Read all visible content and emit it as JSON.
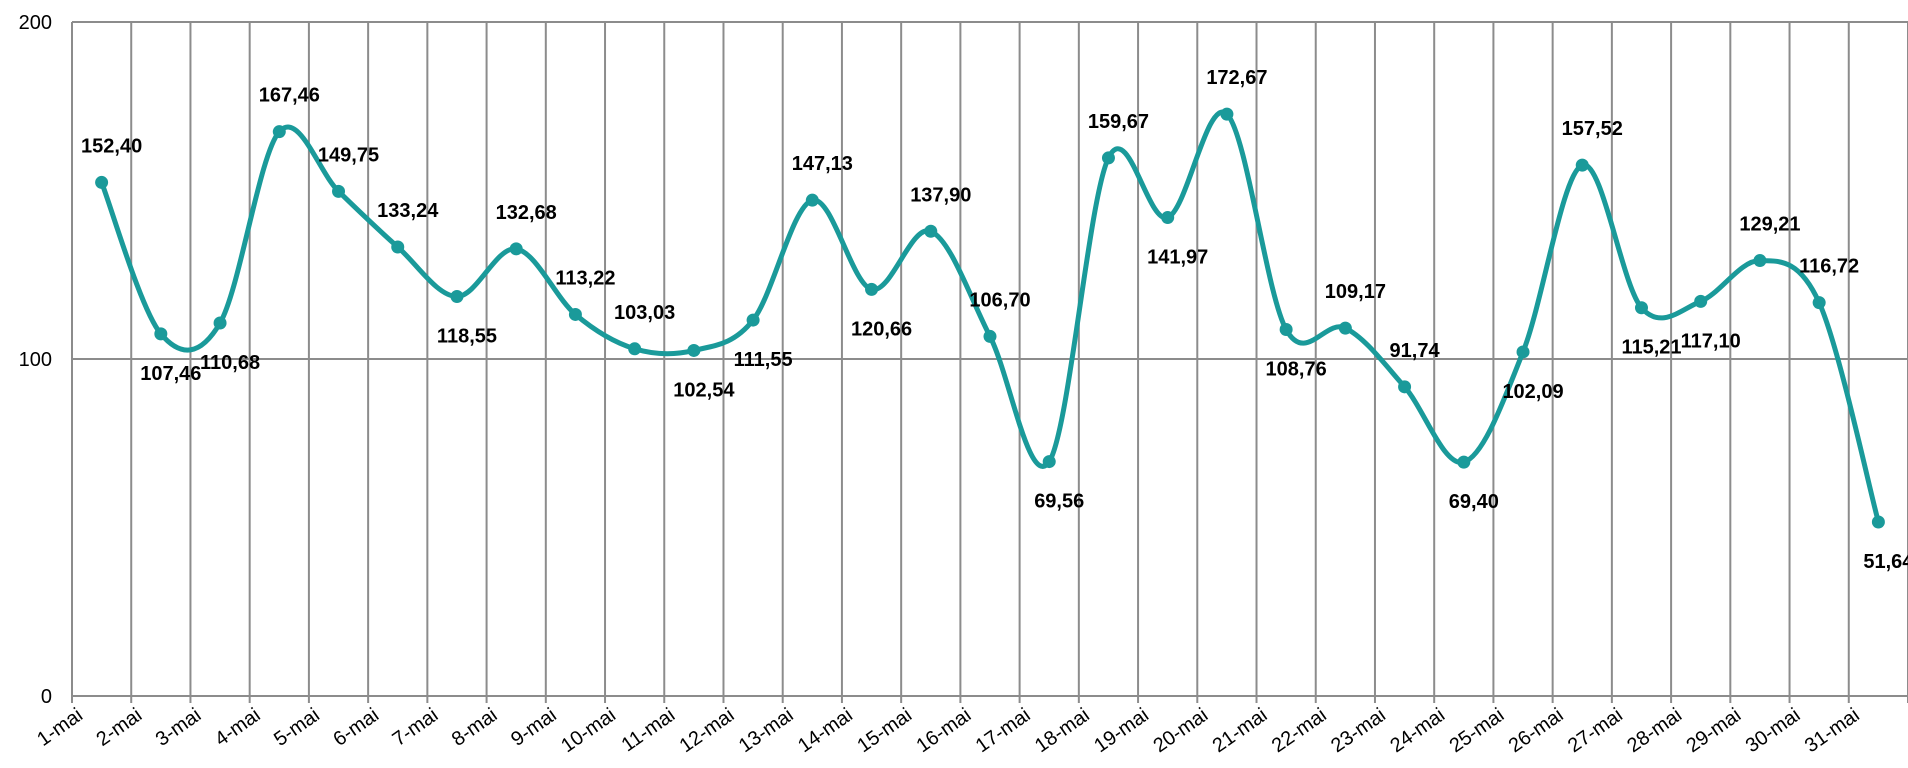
{
  "chart_data": {
    "type": "line",
    "title": "",
    "xlabel": "",
    "ylabel": "",
    "ylim": [
      0,
      200
    ],
    "y_ticks": [
      "0",
      "100",
      "200"
    ],
    "grid": true,
    "legend": "none",
    "categories": [
      "1-mai",
      "2-mai",
      "3-mai",
      "4-mai",
      "5-mai",
      "6-mai",
      "7-mai",
      "8-mai",
      "9-mai",
      "10-mai",
      "11-mai",
      "12-mai",
      "13-mai",
      "14-mai",
      "15-mai",
      "16-mai",
      "17-mai",
      "18-mai",
      "19-mai",
      "20-mai",
      "21-mai",
      "22-mai",
      "23-mai",
      "24-mai",
      "25-mai",
      "26-mai",
      "27-mai",
      "28-mai",
      "29-mai",
      "30-mai",
      "31-mai"
    ],
    "series": [
      {
        "color": "#1a9a9a",
        "values": [
          152.4,
          107.46,
          110.68,
          167.46,
          149.75,
          133.24,
          118.55,
          132.68,
          113.22,
          103.03,
          102.54,
          111.55,
          147.13,
          120.66,
          137.9,
          106.7,
          69.56,
          159.67,
          141.97,
          172.67,
          108.76,
          109.17,
          91.74,
          69.4,
          102.09,
          157.52,
          115.21,
          117.1,
          129.21,
          116.72,
          51.64
        ],
        "labels": [
          "152,40",
          "107,46",
          "110,68",
          "167,46",
          "149,75",
          "133,24",
          "118,55",
          "132,68",
          "113,22",
          "103,03",
          "102,54",
          "111,55",
          "147,13",
          "120,66",
          "137,90",
          "106,70",
          "69,56",
          "159,67",
          "141,97",
          "172,67",
          "108,76",
          "109,17",
          "91,74",
          "69,40",
          "102,09",
          "157,52",
          "115,21",
          "117,10",
          "129,21",
          "116,72",
          "51,64"
        ]
      }
    ]
  }
}
